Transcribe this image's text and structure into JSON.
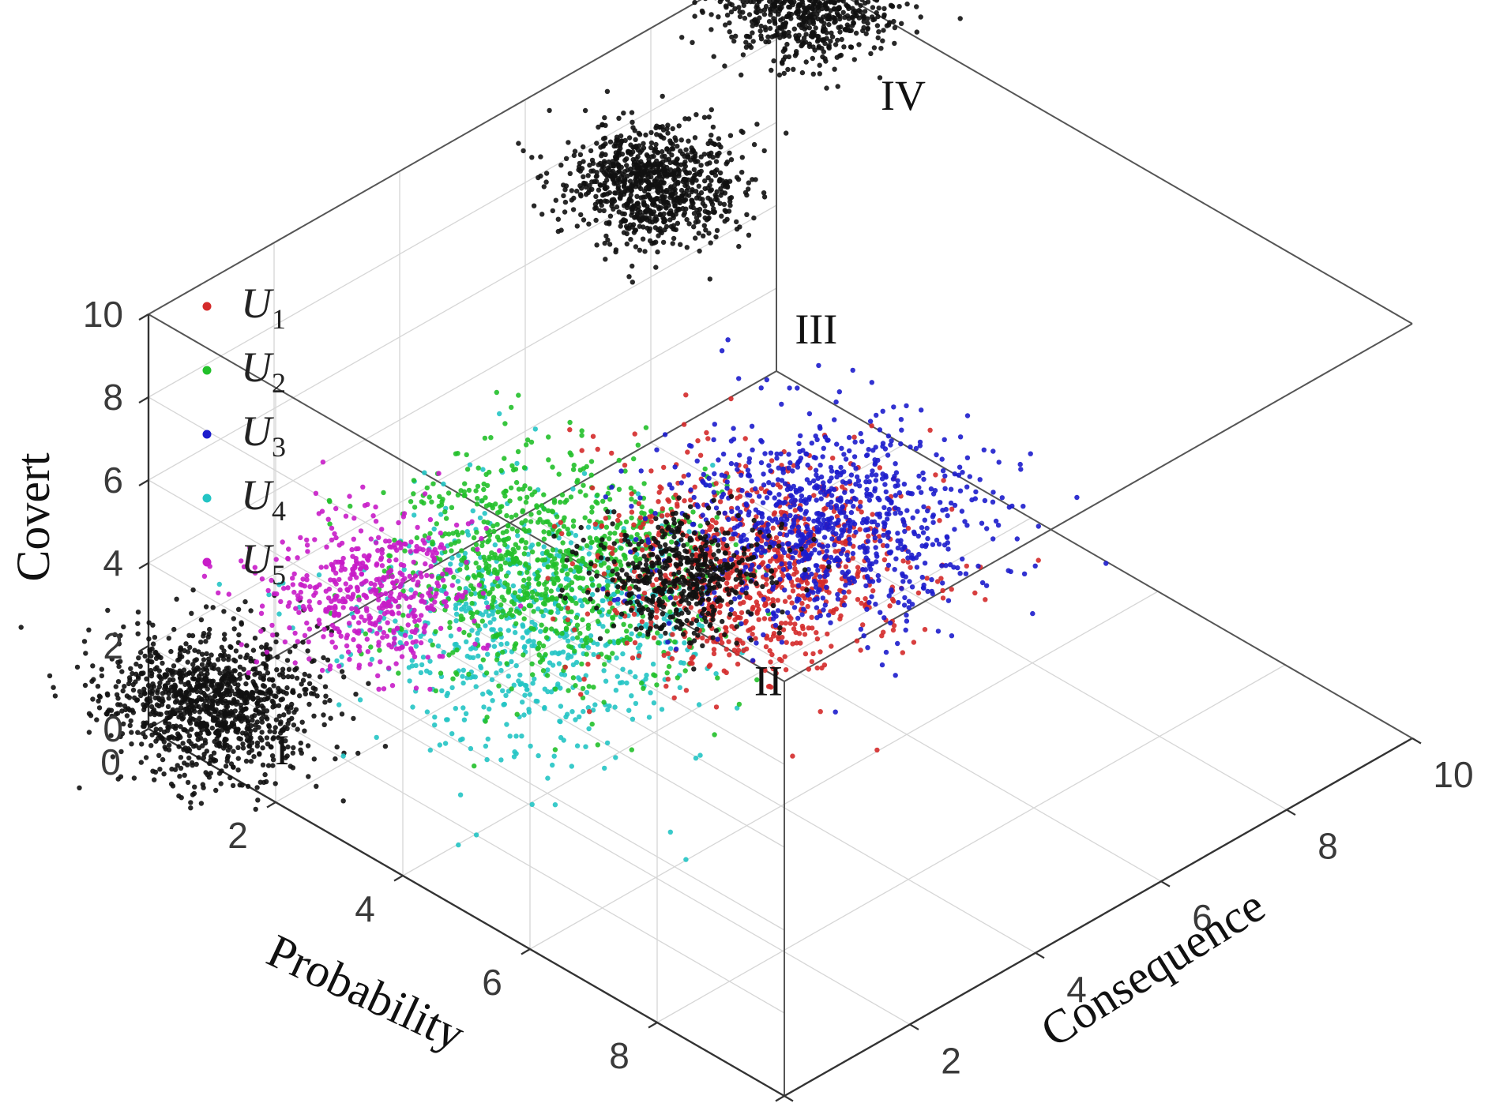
{
  "chart_data": {
    "type": "scatter",
    "projection": "3d",
    "xlabel": "Probability",
    "ylabel": "Consequence",
    "zlabel": "Covert",
    "xlim": [
      0,
      10
    ],
    "ylim": [
      0,
      10
    ],
    "zlim": [
      0,
      10
    ],
    "xticks": [
      "0",
      "2",
      "4",
      "6",
      "8",
      "10"
    ],
    "yticks": [
      "0",
      "2",
      "4",
      "6",
      "8",
      "10"
    ],
    "zticks": [
      "0",
      "2",
      "4",
      "6",
      "8",
      "10"
    ],
    "grid": true,
    "legend_position": "top-left",
    "series": [
      {
        "name": "U",
        "subscript": "1",
        "color": "#d42a2a",
        "center": [
          5.3,
          4.2,
          5.0
        ],
        "spread": [
          0.9,
          0.9,
          0.7
        ],
        "points": 900
      },
      {
        "name": "U",
        "subscript": "2",
        "color": "#22c02a",
        "center": [
          3.6,
          2.7,
          4.7
        ],
        "spread": [
          0.9,
          0.9,
          0.8
        ],
        "points": 900
      },
      {
        "name": "U",
        "subscript": "3",
        "color": "#1c1ccc",
        "center": [
          5.4,
          5.3,
          5.2
        ],
        "spread": [
          0.9,
          0.9,
          0.7
        ],
        "points": 900
      },
      {
        "name": "U",
        "subscript": "4",
        "color": "#23c4c4",
        "center": [
          3.8,
          2.3,
          3.8
        ],
        "spread": [
          1.0,
          1.0,
          0.9
        ],
        "points": 700
      },
      {
        "name": "U",
        "subscript": "5",
        "color": "#c81cc8",
        "center": [
          2.4,
          1.1,
          4.5
        ],
        "spread": [
          0.6,
          0.6,
          0.5
        ],
        "points": 500
      }
    ],
    "clusters": [
      {
        "label": "I",
        "color": "#111111",
        "center": [
          1.0,
          0.0,
          1.5
        ],
        "spread": [
          0.6,
          0.6,
          0.45
        ],
        "points": 1100
      },
      {
        "label": "II",
        "color": "#111111",
        "center": [
          4.6,
          3.8,
          4.5
        ],
        "spread": [
          0.5,
          0.5,
          0.4
        ],
        "points": 500
      },
      {
        "label": "III",
        "color": "#111111",
        "center": [
          1.0,
          7.0,
          8.0
        ],
        "spread": [
          0.5,
          0.5,
          0.35
        ],
        "points": 900
      },
      {
        "label": "IV",
        "color": "#111111",
        "center": [
          0.5,
          10.0,
          9.5
        ],
        "spread": [
          0.5,
          0.5,
          0.35
        ],
        "points": 900
      }
    ]
  }
}
